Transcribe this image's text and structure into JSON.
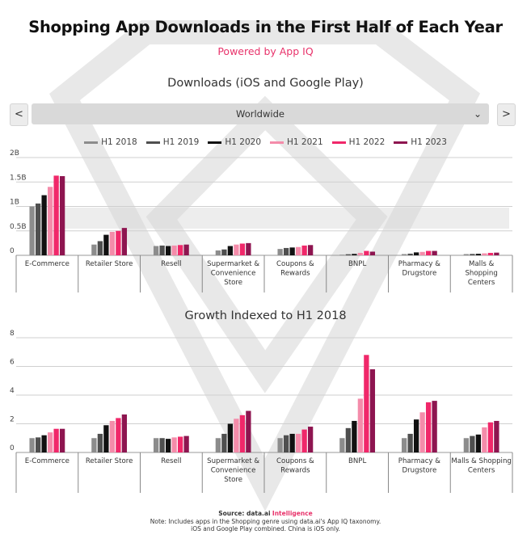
{
  "title": "Shopping App Downloads in the First Half of Each Year",
  "subtitle": "Powered by App IQ",
  "controls": {
    "prev_label": "<",
    "next_label": ">",
    "region_value": "Worldwide",
    "chevron": "chevron-down-icon"
  },
  "colors": [
    "#8c8c8c",
    "#4f4f4f",
    "#111111",
    "#f48caa",
    "#f0286a",
    "#8e1550"
  ],
  "footer": {
    "source_prefix": "Source: data.ai",
    "source_brand": "Intelligence",
    "note_line1": "Note: Includes apps in the Shopping genre using data.ai's App IQ taxonomy.",
    "note_line2": "iOS and Google Play combined. China is iOS only."
  },
  "chart_data": [
    {
      "type": "bar",
      "title": "Downloads (iOS and Google Play)",
      "categories": [
        "E-Commerce",
        "Retailer Store",
        "Resell",
        "Supermarket & Convenience Store",
        "Coupons & Rewards",
        "BNPL",
        "Pharmacy & Drugstore",
        "Malls & Shopping Centers"
      ],
      "category_lines": [
        [
          "E-Commerce"
        ],
        [
          "Retailer Store"
        ],
        [
          "Resell"
        ],
        [
          "Supermarket &",
          "Convenience",
          "Store"
        ],
        [
          "Coupons &",
          "Rewards"
        ],
        [
          "BNPL"
        ],
        [
          "Pharmacy &",
          "Drugstore"
        ],
        [
          "Malls &",
          "Shopping",
          "Centers"
        ]
      ],
      "yticks": [
        0,
        0.5,
        1,
        1.5,
        2
      ],
      "ytick_labels": [
        "0",
        "0.5B",
        "1B",
        "1.5B",
        "2B"
      ],
      "ylim": [
        0,
        2
      ],
      "grid": true,
      "legend_position": "top",
      "series": [
        {
          "name": "H1 2018",
          "values": [
            1.0,
            0.22,
            0.19,
            0.1,
            0.13,
            0.013,
            0.025,
            0.025
          ]
        },
        {
          "name": "H1 2019",
          "values": [
            1.06,
            0.29,
            0.2,
            0.12,
            0.15,
            0.022,
            0.034,
            0.028
          ]
        },
        {
          "name": "H1 2020",
          "values": [
            1.23,
            0.42,
            0.19,
            0.19,
            0.16,
            0.029,
            0.06,
            0.031
          ]
        },
        {
          "name": "H1 2021",
          "values": [
            1.4,
            0.48,
            0.2,
            0.22,
            0.17,
            0.05,
            0.07,
            0.04
          ]
        },
        {
          "name": "H1 2022",
          "values": [
            1.63,
            0.5,
            0.21,
            0.24,
            0.2,
            0.09,
            0.09,
            0.05
          ]
        },
        {
          "name": "H1 2023",
          "values": [
            1.62,
            0.56,
            0.22,
            0.25,
            0.21,
            0.075,
            0.09,
            0.055
          ]
        }
      ]
    },
    {
      "type": "bar",
      "title": "Growth Indexed to H1 2018",
      "categories": [
        "E-Commerce",
        "Retailer Store",
        "Resell",
        "Supermarket & Convenience Store",
        "Coupons & Rewards",
        "BNPL",
        "Pharmacy & Drugstore",
        "Malls & Shopping Centers"
      ],
      "category_lines": [
        [
          "E-Commerce"
        ],
        [
          "Retailer Store"
        ],
        [
          "Resell"
        ],
        [
          "Supermarket &",
          "Convenience",
          "Store"
        ],
        [
          "Coupons &",
          "Rewards"
        ],
        [
          "BNPL"
        ],
        [
          "Pharmacy &",
          "Drugstore"
        ],
        [
          "Malls & Shopping",
          "Centers"
        ]
      ],
      "yticks": [
        0,
        2,
        4,
        6,
        8
      ],
      "ytick_labels": [
        "0",
        "2",
        "4",
        "6",
        "8"
      ],
      "ylim": [
        0,
        8
      ],
      "grid": true,
      "series": [
        {
          "name": "H1 2018",
          "values": [
            1.0,
            1.0,
            1.0,
            1.0,
            1.0,
            1.0,
            1.0,
            1.0
          ]
        },
        {
          "name": "H1 2019",
          "values": [
            1.05,
            1.3,
            1.0,
            1.3,
            1.2,
            1.7,
            1.3,
            1.15
          ]
        },
        {
          "name": "H1 2020",
          "values": [
            1.2,
            1.9,
            0.95,
            2.0,
            1.3,
            2.2,
            2.3,
            1.25
          ]
        },
        {
          "name": "H1 2021",
          "values": [
            1.4,
            2.2,
            1.05,
            2.35,
            1.3,
            3.75,
            2.8,
            1.75
          ]
        },
        {
          "name": "H1 2022",
          "values": [
            1.65,
            2.4,
            1.1,
            2.6,
            1.6,
            6.8,
            3.5,
            2.1
          ]
        },
        {
          "name": "H1 2023",
          "values": [
            1.65,
            2.65,
            1.15,
            2.9,
            1.8,
            5.8,
            3.6,
            2.2
          ]
        }
      ]
    }
  ]
}
